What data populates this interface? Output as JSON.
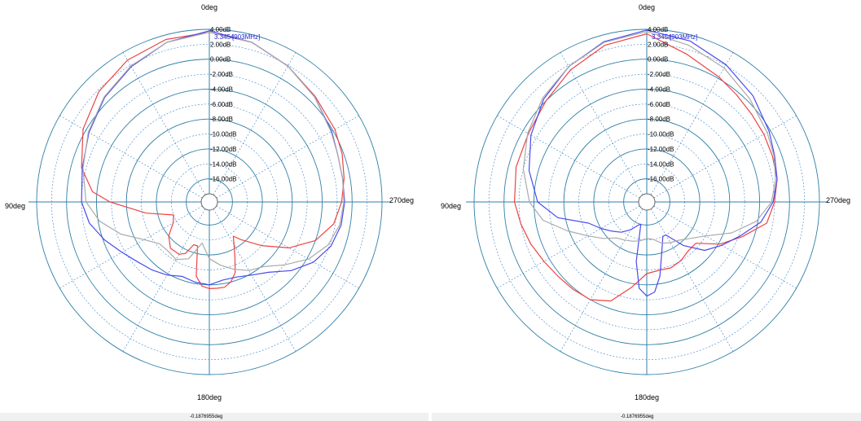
{
  "chart_data": [
    {
      "type": "polar",
      "angle_labels": [
        "0deg",
        "90deg",
        "180deg",
        "270deg"
      ],
      "radial_labels": [
        "4.00dB",
        "2.00dB",
        "0.00dB",
        "-2.00dB",
        "-4.00dB",
        "-6.00dB",
        "-8.00dB",
        "-10.00dB",
        "-12.00dB",
        "-14.00dB",
        "-16.00dB"
      ],
      "radial_range_db": [
        -18,
        4
      ],
      "angle_direction": "counter-clockwise",
      "grid": true,
      "marker_label": "3.3454",
      "marker_label2": "[903MHz]",
      "footer_text": "-0.1876955deg",
      "colors": {
        "series1": "#ee4444",
        "series2": "#4a4af0",
        "series3": "#aaaaaa",
        "grid_solid": "#2f80a8",
        "grid_dashed": "#3c84c8"
      },
      "series": [
        {
          "color_key": "series1",
          "angle_deg": [
            0,
            15,
            30,
            45,
            60,
            75,
            85,
            90,
            100,
            110,
            120,
            130,
            140,
            150,
            155,
            160,
            165,
            170,
            175,
            180,
            185,
            190,
            195,
            200,
            205,
            210,
            215,
            220,
            230,
            240,
            250,
            260,
            270,
            280,
            290,
            300,
            315,
            330,
            345,
            360
          ],
          "value_db": [
            3.6,
            3.4,
            2.8,
            1.8,
            0.4,
            -1.4,
            -3.4,
            -5.8,
            -10.5,
            -14.0,
            -13.5,
            -12.0,
            -11.0,
            -11.0,
            -11.5,
            -13.0,
            -13.0,
            -9.0,
            -7.8,
            -7.5,
            -7.5,
            -7.5,
            -8.0,
            -9.0,
            -11.0,
            -12.5,
            -13.5,
            -12.5,
            -10.0,
            -6.8,
            -4.0,
            -2.2,
            -1.4,
            -0.8,
            -0.2,
            0.3,
            0.9,
            1.9,
            3.0,
            3.6
          ]
        },
        {
          "color_key": "series2",
          "angle_deg": [
            0,
            15,
            30,
            45,
            60,
            75,
            90,
            100,
            110,
            120,
            130,
            140,
            150,
            160,
            170,
            180,
            190,
            200,
            210,
            220,
            230,
            240,
            250,
            260,
            270,
            280,
            290,
            300,
            315,
            330,
            345,
            360
          ],
          "value_db": [
            3.8,
            3.0,
            1.8,
            0.7,
            -0.5,
            -1.5,
            -2.0,
            -2.8,
            -4.2,
            -5.6,
            -6.6,
            -7.2,
            -7.8,
            -8.5,
            -8.2,
            -8.0,
            -8.5,
            -8.4,
            -7.8,
            -6.8,
            -4.8,
            -3.0,
            -1.8,
            -1.2,
            -1.0,
            -1.0,
            -0.8,
            -0.2,
            0.8,
            1.9,
            3.0,
            3.8
          ]
        },
        {
          "color_key": "series3",
          "angle_deg": [
            0,
            15,
            30,
            45,
            60,
            75,
            90,
            100,
            110,
            120,
            130,
            140,
            150,
            160,
            170,
            180,
            190,
            200,
            210,
            220,
            230,
            240,
            250,
            260,
            270,
            280,
            290,
            300,
            315,
            330,
            345,
            360
          ],
          "value_db": [
            3.6,
            3.0,
            1.9,
            0.8,
            -0.4,
            -1.6,
            -2.6,
            -4.2,
            -6.5,
            -9.0,
            -10.4,
            -10.5,
            -10.2,
            -11.0,
            -13.5,
            -11.5,
            -10.5,
            -9.5,
            -8.5,
            -7.8,
            -6.0,
            -3.8,
            -2.2,
            -1.4,
            -1.1,
            -1.0,
            -0.8,
            -0.3,
            0.8,
            1.9,
            3.0,
            3.6
          ]
        }
      ]
    },
    {
      "type": "polar",
      "angle_labels": [
        "0deg",
        "90deg",
        "180deg",
        "270deg"
      ],
      "radial_labels": [
        "4.00dB",
        "2.00dB",
        "0.00dB",
        "-2.00dB",
        "-4.00dB",
        "-6.00dB",
        "-8.00dB",
        "-10.00dB",
        "-12.00dB",
        "-14.00dB",
        "-16.00dB"
      ],
      "radial_range_db": [
        -18,
        4
      ],
      "angle_direction": "counter-clockwise",
      "grid": true,
      "marker_label": "3.3454",
      "marker_label2": "[903MHz]",
      "footer_text": "-0.1876955deg",
      "colors": {
        "series1": "#ee4444",
        "series2": "#4a4af0",
        "series3": "#aaaaaa",
        "grid_solid": "#2f80a8",
        "grid_dashed": "#3c84c8"
      },
      "series": [
        {
          "color_key": "series1",
          "angle_deg": [
            0,
            15,
            30,
            45,
            60,
            75,
            90,
            100,
            110,
            120,
            130,
            140,
            150,
            160,
            170,
            180,
            190,
            200,
            210,
            220,
            230,
            240,
            250,
            260,
            270,
            280,
            290,
            300,
            310,
            320,
            330,
            345,
            360
          ],
          "value_db": [
            3.4,
            2.6,
            1.3,
            0.0,
            -0.8,
            -1.0,
            -1.4,
            -2.0,
            -2.6,
            -3.2,
            -3.6,
            -3.8,
            -4.0,
            -5.0,
            -7.5,
            -9.5,
            -9.8,
            -9.7,
            -10.0,
            -10.5,
            -10.5,
            -7.8,
            -5.5,
            -2.8,
            -2.0,
            -1.4,
            -1.2,
            -1.0,
            -0.8,
            -0.4,
            0.2,
            1.4,
            3.4
          ]
        },
        {
          "color_key": "series2",
          "angle_deg": [
            0,
            15,
            30,
            45,
            60,
            75,
            90,
            100,
            110,
            120,
            130,
            140,
            150,
            160,
            165,
            170,
            175,
            180,
            185,
            190,
            195,
            200,
            205,
            210,
            220,
            230,
            240,
            250,
            260,
            270,
            280,
            290,
            300,
            315,
            330,
            345,
            360
          ],
          "value_db": [
            3.9,
            3.1,
            1.8,
            0.4,
            -1.2,
            -2.8,
            -4.5,
            -7.0,
            -10.8,
            -12.0,
            -13.0,
            -13.8,
            -14.8,
            -15.8,
            -16.0,
            -11.0,
            -7.5,
            -6.5,
            -7.0,
            -9.0,
            -11.5,
            -13.0,
            -14.0,
            -14.0,
            -11.5,
            -9.0,
            -7.5,
            -5.8,
            -3.6,
            -2.2,
            -1.4,
            -0.9,
            -0.2,
            1.0,
            2.1,
            3.2,
            3.9
          ]
        },
        {
          "color_key": "series3",
          "angle_deg": [
            0,
            15,
            30,
            45,
            60,
            75,
            90,
            100,
            110,
            120,
            130,
            140,
            150,
            160,
            170,
            180,
            190,
            200,
            210,
            220,
            230,
            240,
            250,
            260,
            270,
            280,
            290,
            300,
            315,
            330,
            345,
            360
          ],
          "value_db": [
            3.7,
            3.0,
            1.8,
            0.6,
            -0.7,
            -2.0,
            -3.4,
            -5.0,
            -7.8,
            -10.0,
            -11.5,
            -12.8,
            -13.2,
            -13.5,
            -13.8,
            -14.2,
            -14.0,
            -13.2,
            -12.8,
            -12.4,
            -11.5,
            -10.0,
            -7.0,
            -4.2,
            -2.4,
            -1.6,
            -1.0,
            -0.5,
            0.4,
            1.6,
            2.6,
            3.7
          ]
        }
      ]
    }
  ]
}
